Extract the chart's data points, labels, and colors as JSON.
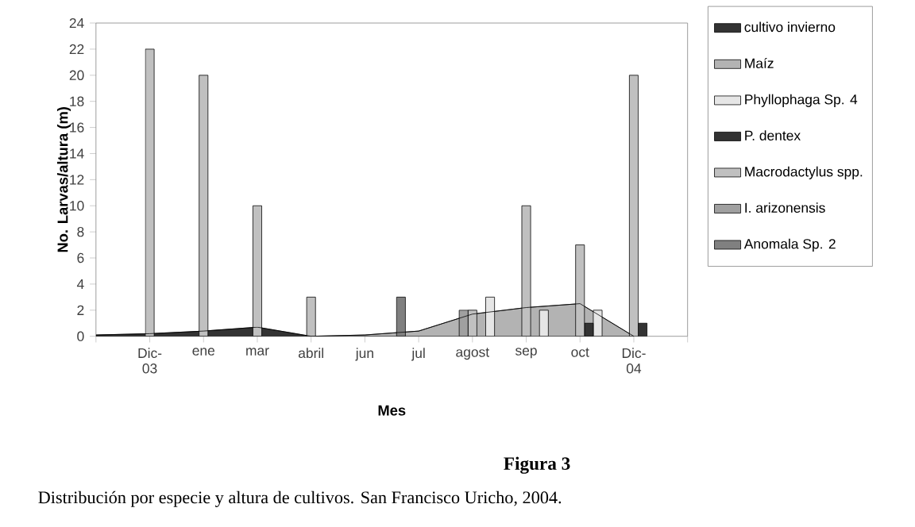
{
  "chart_data": {
    "type": "bar",
    "xlabel": "Mes",
    "ylabel": "No. Larvas/altura (m)",
    "categories": [
      null,
      "Dic-03",
      "ene",
      "mar",
      "abril",
      "jun",
      "jul",
      "agost",
      "sep",
      "oct",
      "Dic-04",
      null
    ],
    "ylim": [
      0,
      24
    ],
    "yticks": [
      0,
      2,
      4,
      6,
      8,
      10,
      12,
      14,
      16,
      18,
      20,
      22,
      24
    ],
    "grid": false,
    "legend": "right",
    "series": [
      {
        "name": "cultivo invierno",
        "type": "area",
        "color": "#333333",
        "values": [
          0.1,
          0.2,
          0.4,
          0.7,
          0,
          null,
          null,
          null,
          null,
          null,
          null,
          null
        ]
      },
      {
        "name": "Maíz",
        "type": "area",
        "color": "#b3b3b3",
        "values": [
          null,
          null,
          null,
          null,
          0,
          0.1,
          0.4,
          1.7,
          2.2,
          2.5,
          0,
          null
        ]
      },
      {
        "name": "Phyllophaga Sp.  4",
        "color": "#e6e6e6",
        "values": [
          null,
          null,
          null,
          null,
          null,
          null,
          null,
          3,
          2,
          2,
          null,
          null
        ]
      },
      {
        "name": "P. dentex",
        "color": "#333333",
        "values": [
          null,
          null,
          null,
          null,
          null,
          null,
          null,
          null,
          null,
          1,
          1,
          null
        ]
      },
      {
        "name": "Macrodactylus spp.",
        "color": "#c0c0c0",
        "values": [
          null,
          22,
          20,
          10,
          3,
          null,
          null,
          2,
          10,
          7,
          20,
          null
        ]
      },
      {
        "name": "I. arizonensis",
        "color": "#a0a0a0",
        "values": [
          null,
          null,
          null,
          null,
          null,
          null,
          null,
          2,
          null,
          null,
          null,
          null
        ]
      },
      {
        "name": "Anomala Sp. 2",
        "color": "#808080",
        "values": [
          null,
          null,
          null,
          null,
          null,
          null,
          3,
          null,
          null,
          null,
          null,
          null
        ]
      }
    ],
    "annotations": [
      "Figura 3",
      "Distribución por especie y altura de cultivos. San Francisco Uricho, 2004."
    ]
  }
}
